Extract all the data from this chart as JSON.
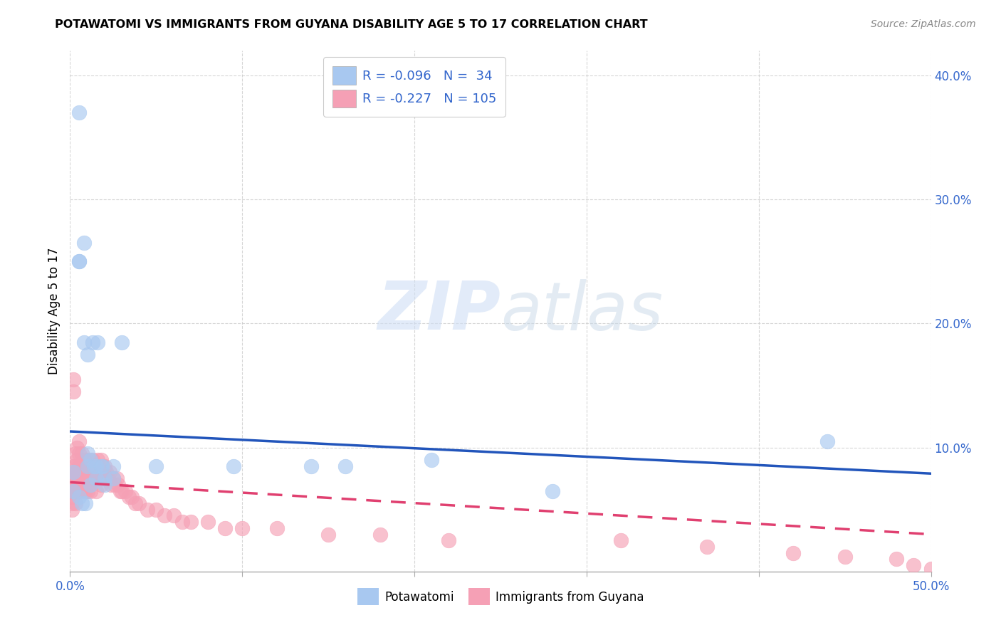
{
  "title": "POTAWATOMI VS IMMIGRANTS FROM GUYANA DISABILITY AGE 5 TO 17 CORRELATION CHART",
  "source": "Source: ZipAtlas.com",
  "ylabel": "Disability Age 5 to 17",
  "xlim": [
    0.0,
    0.5
  ],
  "ylim": [
    0.0,
    0.42
  ],
  "xticks": [
    0.0,
    0.5
  ],
  "xticklabels": [
    "0.0%",
    "50.0%"
  ],
  "yticks": [
    0.1,
    0.2,
    0.3,
    0.4
  ],
  "yticklabels": [
    "10.0%",
    "20.0%",
    "30.0%",
    "40.0%"
  ],
  "blue_color": "#a8c8f0",
  "pink_color": "#f5a0b5",
  "blue_line_color": "#2255bb",
  "pink_line_color": "#e04070",
  "blue_scatter_x": [
    0.002,
    0.005,
    0.005,
    0.005,
    0.008,
    0.008,
    0.01,
    0.01,
    0.01,
    0.012,
    0.013,
    0.014,
    0.015,
    0.015,
    0.016,
    0.018,
    0.019,
    0.02,
    0.02,
    0.025,
    0.025,
    0.03,
    0.05,
    0.095,
    0.14,
    0.16,
    0.21,
    0.28,
    0.44,
    0.002,
    0.005,
    0.007,
    0.009,
    0.012
  ],
  "blue_scatter_y": [
    0.08,
    0.37,
    0.25,
    0.25,
    0.265,
    0.185,
    0.175,
    0.095,
    0.085,
    0.09,
    0.185,
    0.085,
    0.085,
    0.075,
    0.185,
    0.085,
    0.085,
    0.075,
    0.07,
    0.085,
    0.075,
    0.185,
    0.085,
    0.085,
    0.085,
    0.085,
    0.09,
    0.065,
    0.105,
    0.065,
    0.06,
    0.055,
    0.055,
    0.07
  ],
  "pink_scatter_x": [
    0.001,
    0.001,
    0.001,
    0.001,
    0.001,
    0.002,
    0.002,
    0.002,
    0.002,
    0.002,
    0.003,
    0.003,
    0.003,
    0.003,
    0.003,
    0.003,
    0.004,
    0.004,
    0.004,
    0.004,
    0.004,
    0.005,
    0.005,
    0.005,
    0.005,
    0.005,
    0.006,
    0.006,
    0.006,
    0.006,
    0.007,
    0.007,
    0.007,
    0.007,
    0.008,
    0.008,
    0.008,
    0.008,
    0.009,
    0.009,
    0.009,
    0.009,
    0.01,
    0.01,
    0.01,
    0.01,
    0.011,
    0.011,
    0.011,
    0.012,
    0.012,
    0.012,
    0.013,
    0.013,
    0.014,
    0.014,
    0.015,
    0.015,
    0.015,
    0.016,
    0.016,
    0.017,
    0.017,
    0.018,
    0.018,
    0.018,
    0.019,
    0.019,
    0.02,
    0.02,
    0.021,
    0.022,
    0.023,
    0.024,
    0.025,
    0.026,
    0.027,
    0.028,
    0.029,
    0.03,
    0.032,
    0.034,
    0.036,
    0.038,
    0.04,
    0.045,
    0.05,
    0.055,
    0.06,
    0.065,
    0.07,
    0.08,
    0.09,
    0.1,
    0.12,
    0.15,
    0.18,
    0.22,
    0.32,
    0.37,
    0.42,
    0.45,
    0.48,
    0.49,
    0.5
  ],
  "pink_scatter_y": [
    0.065,
    0.065,
    0.06,
    0.055,
    0.05,
    0.155,
    0.145,
    0.085,
    0.075,
    0.065,
    0.095,
    0.085,
    0.08,
    0.075,
    0.065,
    0.055,
    0.1,
    0.09,
    0.08,
    0.075,
    0.065,
    0.105,
    0.095,
    0.085,
    0.075,
    0.065,
    0.085,
    0.08,
    0.075,
    0.065,
    0.095,
    0.085,
    0.08,
    0.07,
    0.09,
    0.085,
    0.075,
    0.065,
    0.09,
    0.08,
    0.075,
    0.065,
    0.085,
    0.08,
    0.075,
    0.065,
    0.09,
    0.08,
    0.07,
    0.085,
    0.075,
    0.065,
    0.09,
    0.08,
    0.085,
    0.075,
    0.085,
    0.075,
    0.065,
    0.09,
    0.08,
    0.085,
    0.075,
    0.09,
    0.08,
    0.07,
    0.085,
    0.075,
    0.085,
    0.075,
    0.08,
    0.075,
    0.08,
    0.07,
    0.075,
    0.07,
    0.075,
    0.07,
    0.065,
    0.065,
    0.065,
    0.06,
    0.06,
    0.055,
    0.055,
    0.05,
    0.05,
    0.045,
    0.045,
    0.04,
    0.04,
    0.04,
    0.035,
    0.035,
    0.035,
    0.03,
    0.03,
    0.025,
    0.025,
    0.02,
    0.015,
    0.012,
    0.01,
    0.005,
    0.002
  ],
  "blue_line_x0": 0.0,
  "blue_line_y0": 0.113,
  "blue_line_x1": 0.5,
  "blue_line_y1": 0.079,
  "pink_line_x0": 0.0,
  "pink_line_y0": 0.072,
  "pink_line_x1": 0.5,
  "pink_line_y1": 0.03
}
